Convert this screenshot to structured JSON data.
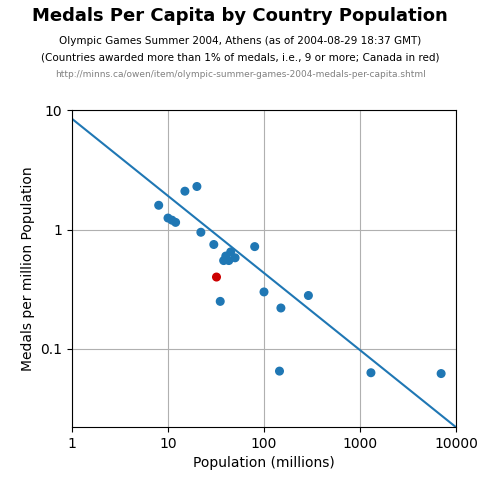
{
  "chart_data": {
    "type": "scatter",
    "title": "Medals Per Capita by Country Population",
    "subtitle": [
      "Olympic Games Summer 2004, Athens (as of 2004-08-29 18:37 GMT)",
      "(Countries awarded more than 1% of medals, i.e., 9 or more; Canada in red)"
    ],
    "annotations": [
      "http://minns.ca/owen/item/olympic-summer-games-2004-medals-per-capita.shtml"
    ],
    "x_label": "Population (millions)",
    "y_label": "Medals per million Population",
    "log": true,
    "grid": true,
    "xlim": [
      1,
      10000
    ],
    "ylim": [
      0.022,
      10
    ],
    "xticks": [
      1,
      10,
      100,
      1000,
      10000
    ],
    "yticks": [
      0.1,
      1,
      10
    ],
    "series": [
      {
        "type": "line",
        "x": [
          1,
          10000
        ],
        "values": [
          8.5,
          0.022
        ]
      },
      {
        "type": "scatter",
        "x": [
          8.0,
          10.0,
          11.0,
          12.0,
          15.0,
          20.0,
          22.0,
          30.0,
          38.0,
          40.0,
          43.0,
          45.0,
          50.0,
          32.0,
          35.0,
          80.0,
          100.0,
          150.0,
          145.0,
          290.0,
          1300.0,
          7000.0
        ],
        "values": [
          1.6,
          1.25,
          1.2,
          1.15,
          2.1,
          2.3,
          0.95,
          0.75,
          0.55,
          0.6,
          0.55,
          0.65,
          0.58,
          0.4,
          0.25,
          0.72,
          0.3,
          0.22,
          0.065,
          0.28,
          0.063,
          0.062
        ],
        "colors": [
          "#1f77b4",
          "#1f77b4",
          "#1f77b4",
          "#1f77b4",
          "#1f77b4",
          "#1f77b4",
          "#1f77b4",
          "#1f77b4",
          "#1f77b4",
          "#1f77b4",
          "#1f77b4",
          "#1f77b4",
          "#1f77b4",
          "#cc0000",
          "#1f77b4",
          "#1f77b4",
          "#1f77b4",
          "#1f77b4",
          "#1f77b4",
          "#1f77b4",
          "#1f77b4",
          "#1f77b4"
        ]
      }
    ]
  }
}
